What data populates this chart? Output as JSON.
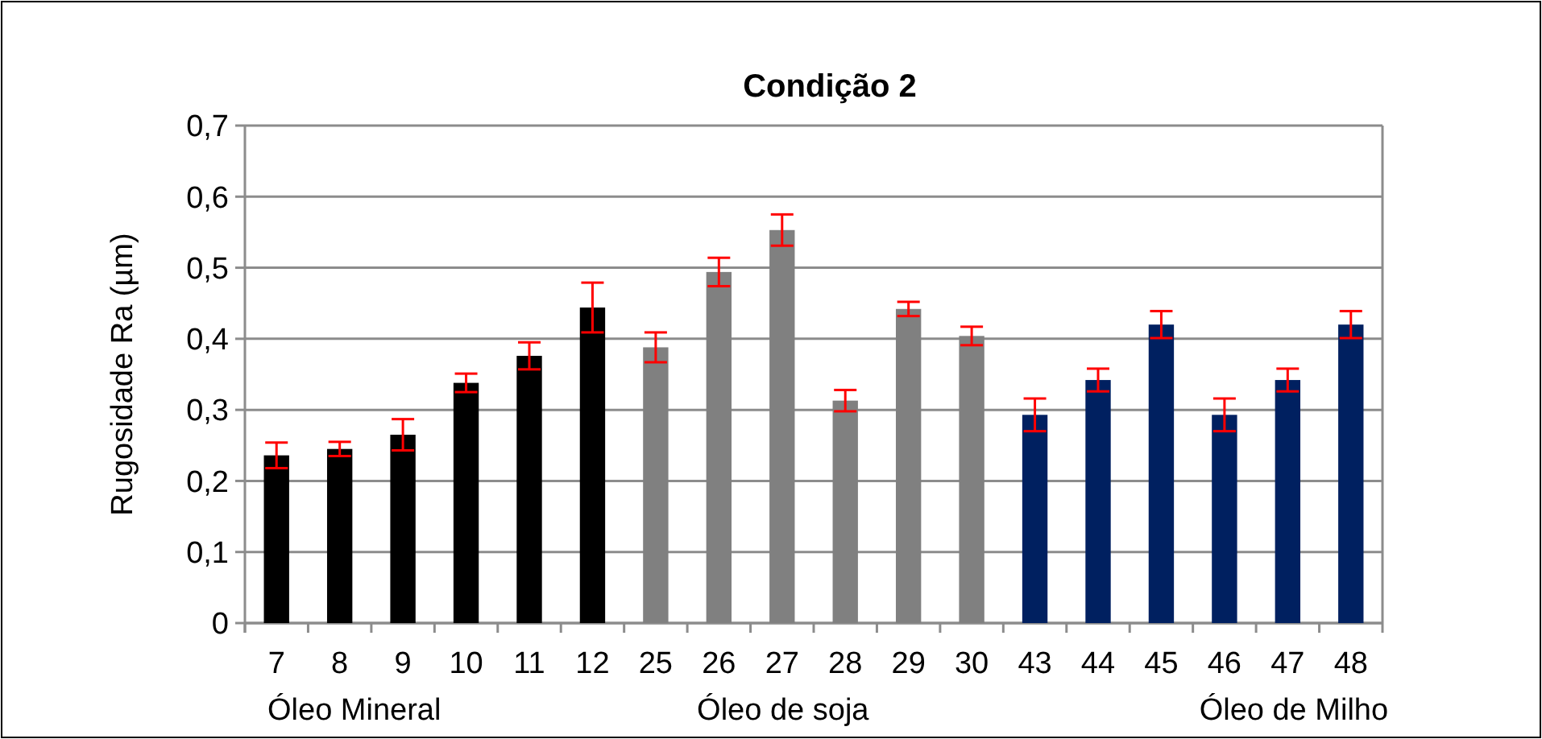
{
  "chart_data": {
    "type": "bar",
    "title": "Condição 2",
    "ylabel": "Rugosidade Ra (µm)",
    "categories": [
      "7",
      "8",
      "9",
      "10",
      "11",
      "12",
      "25",
      "26",
      "27",
      "28",
      "29",
      "30",
      "43",
      "44",
      "45",
      "46",
      "47",
      "48"
    ],
    "values": [
      0.236,
      0.245,
      0.265,
      0.338,
      0.376,
      0.444,
      0.388,
      0.494,
      0.553,
      0.313,
      0.442,
      0.404,
      0.293,
      0.342,
      0.42,
      0.293,
      0.342,
      0.42
    ],
    "errors": [
      0.018,
      0.01,
      0.022,
      0.013,
      0.019,
      0.035,
      0.021,
      0.02,
      0.022,
      0.015,
      0.01,
      0.013,
      0.023,
      0.016,
      0.019,
      0.023,
      0.016,
      0.019
    ],
    "colors": [
      "#000000",
      "#000000",
      "#000000",
      "#000000",
      "#000000",
      "#000000",
      "#808080",
      "#808080",
      "#808080",
      "#808080",
      "#808080",
      "#808080",
      "#002060",
      "#002060",
      "#002060",
      "#002060",
      "#002060",
      "#002060"
    ],
    "ylim": [
      0,
      0.7
    ],
    "yticks": [
      {
        "value": 0,
        "label": "0"
      },
      {
        "value": 0.1,
        "label": "0,1"
      },
      {
        "value": 0.2,
        "label": "0,2"
      },
      {
        "value": 0.3,
        "label": "0,3"
      },
      {
        "value": 0.4,
        "label": "0,4"
      },
      {
        "value": 0.5,
        "label": "0,5"
      },
      {
        "value": 0.6,
        "label": "0,6"
      },
      {
        "value": 0.7,
        "label": "0,7"
      }
    ],
    "grid": "y",
    "annotations": [
      "Óleo Mineral",
      "Óleo de soja",
      "Óleo de Milho"
    ]
  }
}
